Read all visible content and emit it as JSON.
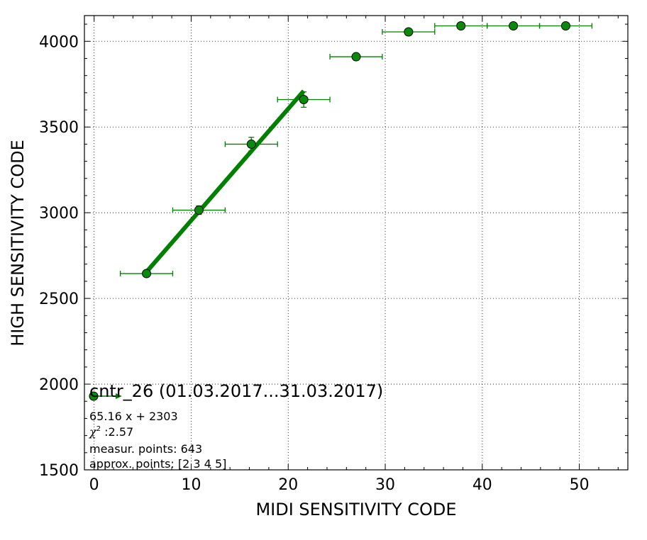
{
  "chart_data": {
    "type": "scatter",
    "xlabel": "MIDI SENSITIVITY CODE",
    "ylabel": "HIGH SENSITIVITY CODE",
    "xlim": [
      -1,
      55
    ],
    "ylim": [
      1500,
      4150
    ],
    "x_ticks": [
      0,
      10,
      20,
      30,
      40,
      50
    ],
    "y_ticks": [
      1500,
      2000,
      2500,
      3000,
      3500,
      4000
    ],
    "x_tick_labels": [
      "0",
      "10",
      "20",
      "30",
      "40",
      "50"
    ],
    "y_tick_labels": [
      "1500",
      "2000",
      "2500",
      "3000",
      "3500",
      "4000"
    ],
    "grid": true,
    "colors": {
      "series": "#008000",
      "marker_face": "#0a8a0a"
    },
    "points": [
      {
        "x": 5.4,
        "y": 2645,
        "xerr": 2.7,
        "yerr": 5
      },
      {
        "x": 10.8,
        "y": 3015,
        "xerr": 2.7,
        "yerr": 25
      },
      {
        "x": 16.2,
        "y": 3400,
        "xerr": 2.7,
        "yerr": 40
      },
      {
        "x": 21.6,
        "y": 3660,
        "xerr": 2.7,
        "yerr": 45
      },
      {
        "x": 27.0,
        "y": 3910,
        "xerr": 2.7,
        "yerr": 20
      },
      {
        "x": 32.4,
        "y": 4055,
        "xerr": 2.7,
        "yerr": 5
      },
      {
        "x": 37.8,
        "y": 4090,
        "xerr": 2.7,
        "yerr": 5
      },
      {
        "x": 43.2,
        "y": 4090,
        "xerr": 2.7,
        "yerr": 5
      },
      {
        "x": 48.6,
        "y": 4090,
        "xerr": 2.7,
        "yerr": 5
      }
    ],
    "fit": {
      "slope": 65.16,
      "intercept": 2303,
      "x_range": [
        5.4,
        21.6
      ]
    },
    "legend": {
      "placement": "lower-left",
      "title": "cntr_26 (01.03.2017...31.03.2017)",
      "fit_equation": "65.16 x + 2303",
      "chi_label": "χ",
      "chi_sup": "2",
      "chi_value": " :2.57",
      "measur_points": "measur. points: 643",
      "approx_points": "approx. points: [2 3 4 5]"
    }
  }
}
